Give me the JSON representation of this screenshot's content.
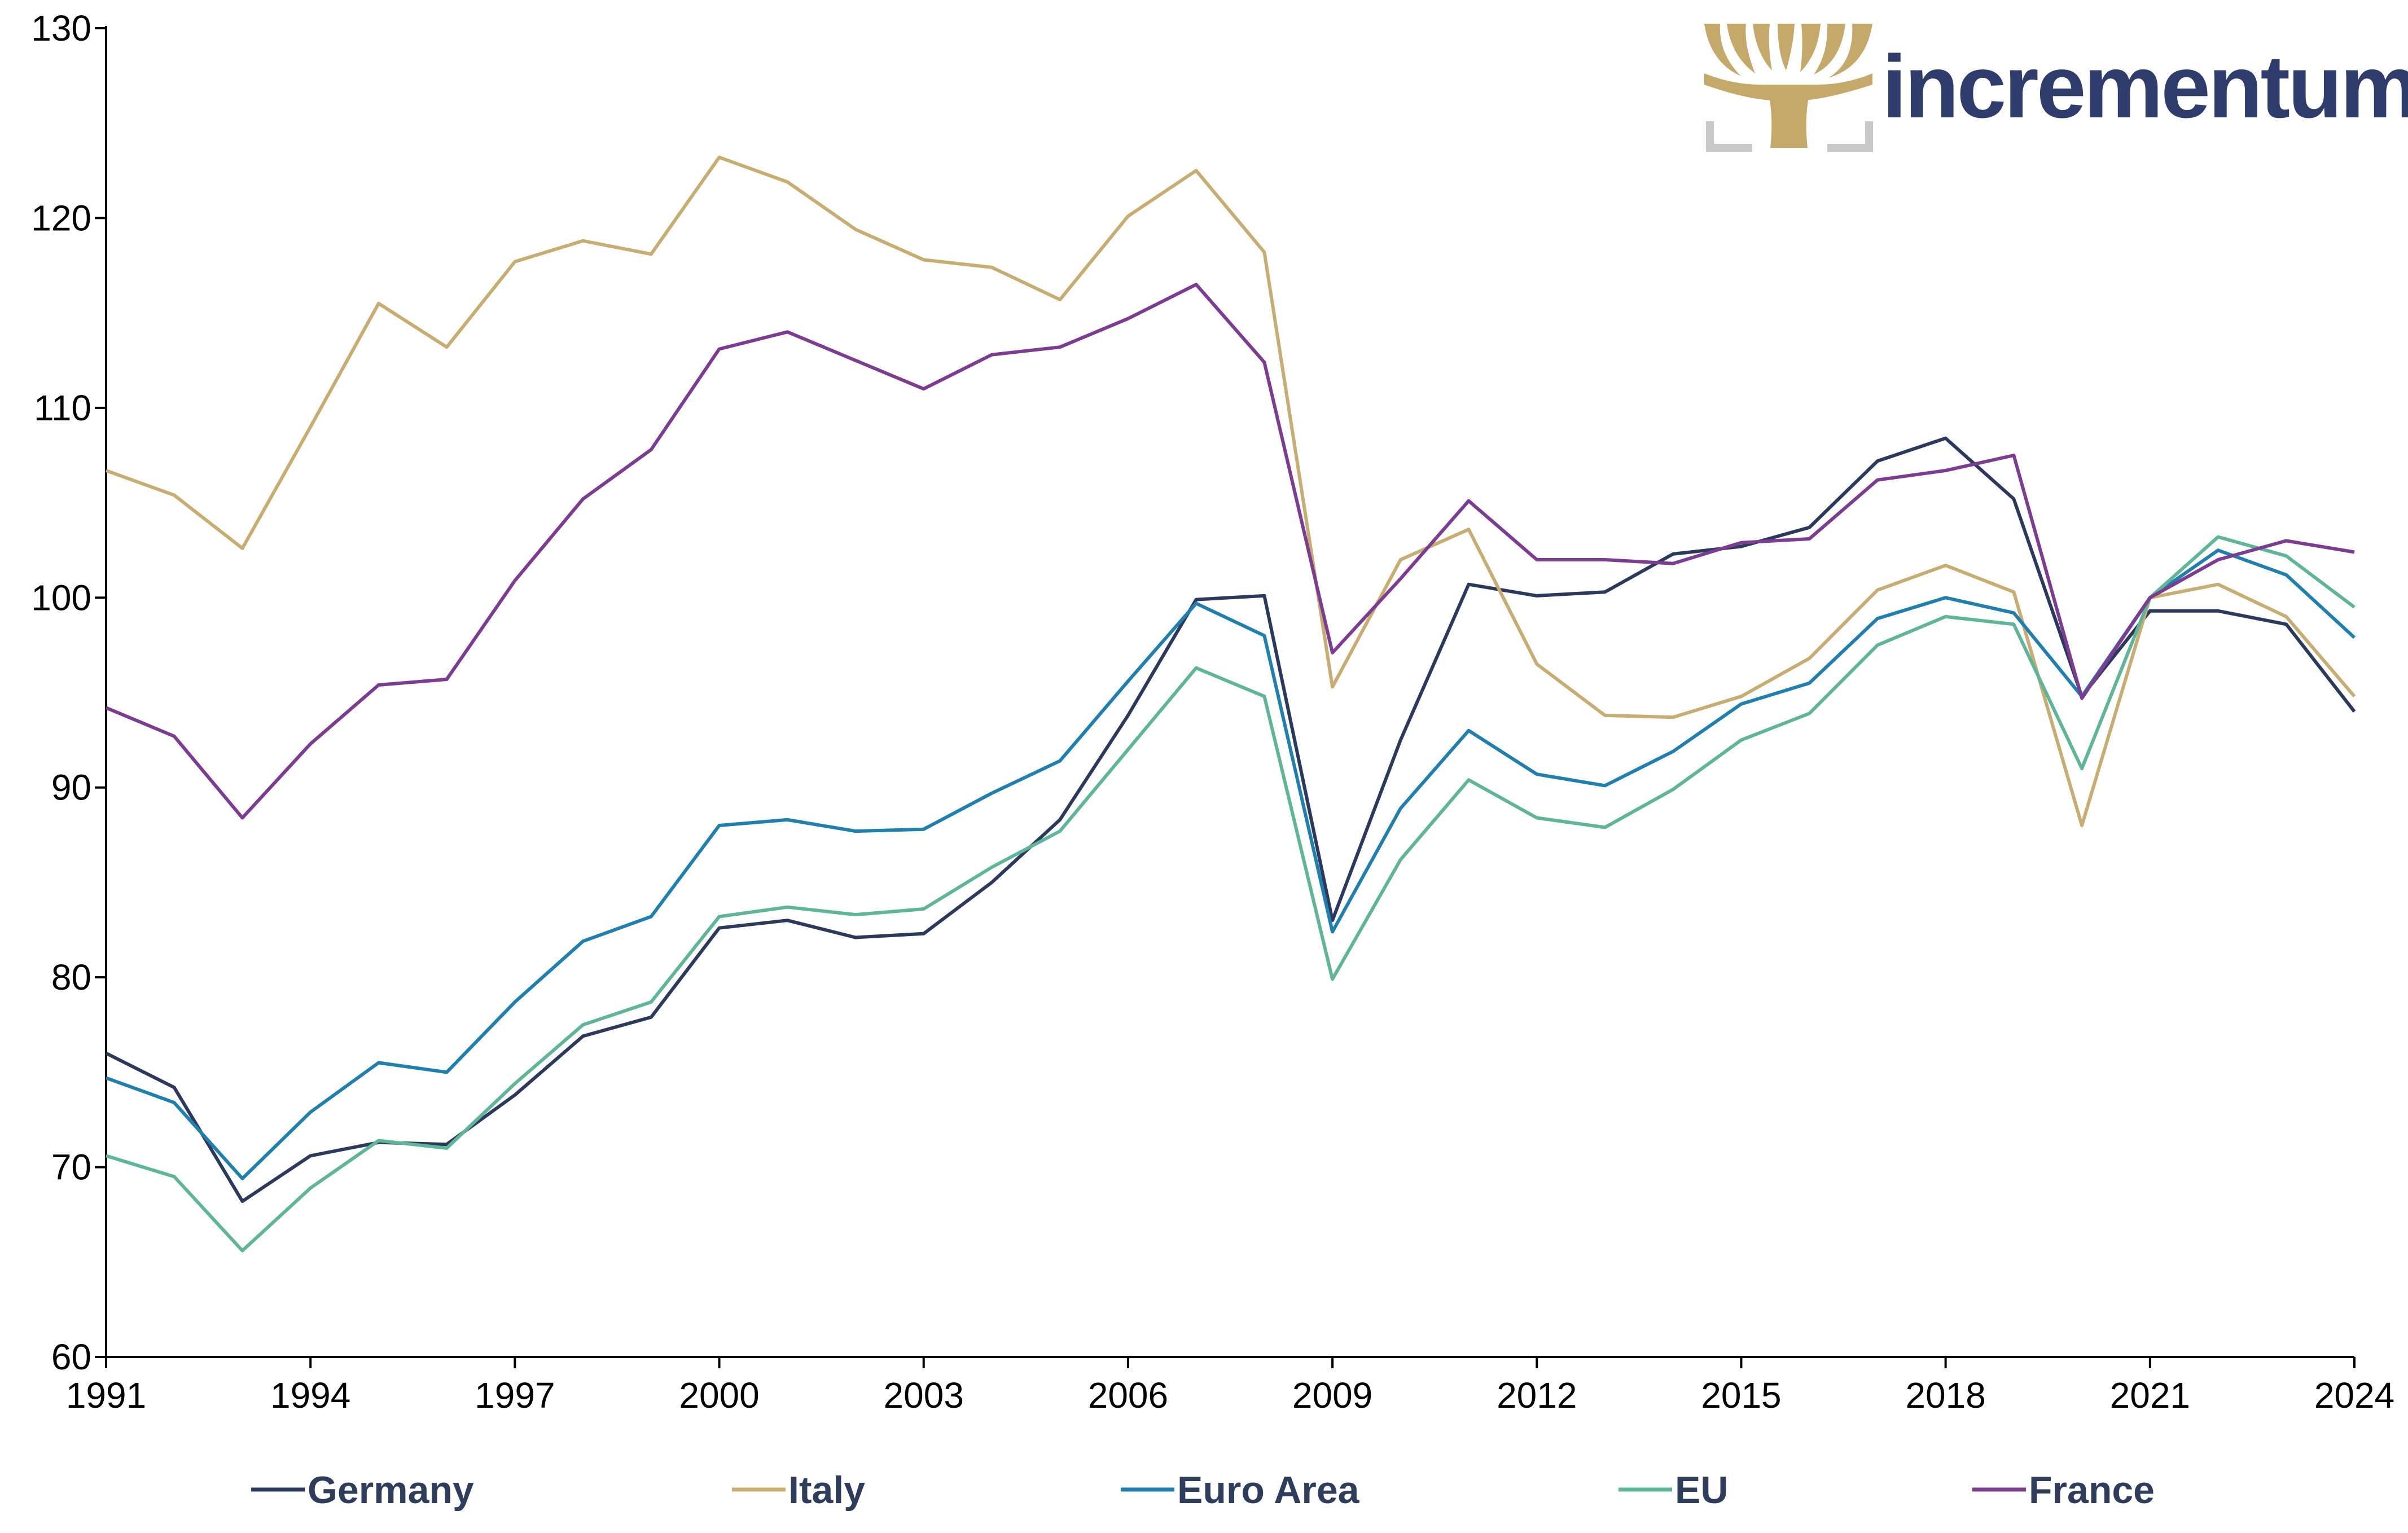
{
  "brand": {
    "name": "incrementum",
    "logo_icon": "tree-icon",
    "colors": {
      "text": "#2e3d6b",
      "tree": "#c5a96b",
      "frame": "#c8c8c8"
    }
  },
  "chart_data": {
    "type": "line",
    "title": "",
    "xlabel": "",
    "ylabel": "",
    "ylim": [
      60,
      130
    ],
    "xlim": [
      1991,
      2024
    ],
    "y_ticks": [
      60,
      70,
      80,
      90,
      100,
      110,
      120,
      130
    ],
    "x_ticks": [
      1991,
      1994,
      1997,
      2000,
      2003,
      2006,
      2009,
      2012,
      2015,
      2018,
      2021,
      2024
    ],
    "grid": false,
    "legend_position": "bottom",
    "x": [
      1991,
      1992,
      1993,
      1994,
      1995,
      1996,
      1997,
      1998,
      1999,
      2000,
      2001,
      2002,
      2003,
      2004,
      2005,
      2006,
      2007,
      2008,
      2009,
      2010,
      2011,
      2012,
      2013,
      2014,
      2015,
      2016,
      2017,
      2018,
      2019,
      2020,
      2021,
      2022,
      2023,
      2024
    ],
    "series": [
      {
        "name": "Germany",
        "color": "#2b3a5c",
        "values": [
          76.0,
          74.2,
          68.2,
          70.6,
          71.3,
          71.2,
          73.8,
          76.9,
          77.9,
          82.6,
          83.0,
          82.1,
          82.3,
          85.0,
          88.3,
          93.8,
          99.9,
          100.1,
          83.0,
          92.5,
          100.7,
          100.1,
          100.3,
          102.3,
          102.7,
          103.7,
          107.2,
          108.4,
          105.2,
          94.8,
          99.3,
          99.3,
          98.6,
          94.0
        ]
      },
      {
        "name": "Italy",
        "color": "#c8ad72",
        "values": [
          106.7,
          105.4,
          102.6,
          109.0,
          115.5,
          113.2,
          117.7,
          118.8,
          118.1,
          123.2,
          121.9,
          119.4,
          117.8,
          117.4,
          115.7,
          120.1,
          122.5,
          118.2,
          95.3,
          102.0,
          103.6,
          96.5,
          93.8,
          93.7,
          94.8,
          96.8,
          100.4,
          101.7,
          100.3,
          88.0,
          100.0,
          100.7,
          99.0,
          94.8
        ]
      },
      {
        "name": "Euro Area",
        "color": "#1f7fae",
        "values": [
          74.7,
          73.4,
          69.4,
          72.9,
          75.5,
          75.0,
          78.7,
          81.9,
          83.2,
          88.0,
          88.3,
          87.7,
          87.8,
          89.7,
          91.4,
          95.6,
          99.7,
          98.0,
          82.4,
          88.9,
          93.0,
          90.7,
          90.1,
          91.9,
          94.4,
          95.5,
          98.9,
          100.0,
          99.2,
          94.8,
          100.0,
          102.5,
          101.2,
          97.9
        ]
      },
      {
        "name": "EU",
        "color": "#5fb59a",
        "values": [
          70.6,
          69.5,
          65.6,
          68.9,
          71.4,
          71.0,
          74.4,
          77.5,
          78.7,
          83.2,
          83.7,
          83.3,
          83.6,
          85.8,
          87.7,
          92.0,
          96.3,
          94.8,
          79.9,
          86.2,
          90.4,
          88.4,
          87.9,
          89.9,
          92.5,
          93.9,
          97.5,
          99.0,
          98.6,
          91.0,
          100.0,
          103.2,
          102.2,
          99.5
        ]
      },
      {
        "name": "France",
        "color": "#7b3c91",
        "values": [
          94.2,
          92.7,
          88.4,
          92.3,
          95.4,
          95.7,
          100.9,
          105.2,
          107.8,
          113.1,
          114.0,
          112.5,
          111.0,
          112.8,
          113.2,
          114.7,
          116.5,
          112.4,
          97.1,
          101.0,
          105.1,
          102.0,
          102.0,
          101.8,
          102.9,
          103.1,
          106.2,
          106.7,
          107.5,
          94.7,
          100.0,
          102.0,
          103.0,
          102.4
        ]
      }
    ]
  }
}
